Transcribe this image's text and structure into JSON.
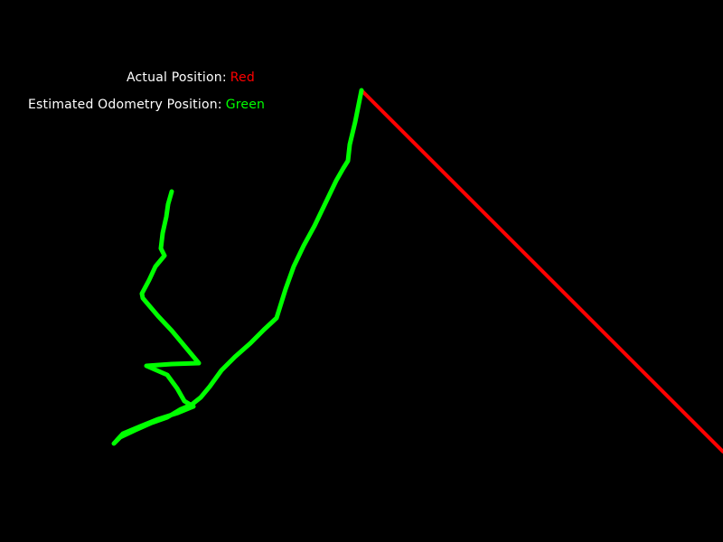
{
  "legend": {
    "actual": {
      "label": "Actual Position:",
      "value": "Red",
      "color": "#ff0000"
    },
    "estimated": {
      "label": "Estimated Odometry Position:",
      "value": "Green",
      "color": "#00ff00"
    }
  },
  "colors": {
    "background": "#000000",
    "text": "#ffffff",
    "actual_path": "#ff0000",
    "estimated_path": "#00ff00"
  }
}
